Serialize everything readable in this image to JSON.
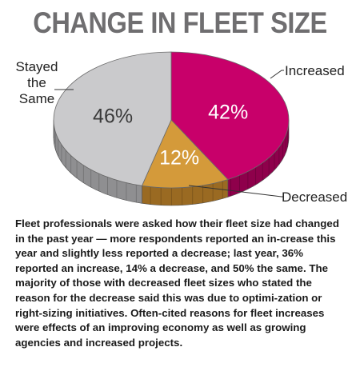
{
  "chart_data": {
    "type": "pie",
    "title": "CHANGE IN FLEET SIZE",
    "categories": [
      "Increased",
      "Decreased",
      "Stayed the Same"
    ],
    "values": [
      42,
      12,
      46
    ],
    "value_labels": [
      "42%",
      "12%",
      "46%"
    ],
    "colors": [
      "#c8006a",
      "#d49a3a",
      "#cacacc"
    ],
    "side_colors": [
      "#8e004b",
      "#9a6a22",
      "#8f8f91"
    ],
    "label_colors": [
      "#ffffff",
      "#ffffff",
      "#3a3a3a"
    ],
    "callouts": [
      [
        "Increased"
      ],
      [
        "Decreased"
      ],
      [
        "Stayed",
        "the",
        "Same"
      ]
    ],
    "style": "3d-tilted"
  },
  "caption": "Fleet professionals were asked how their fleet size had changed in the past year — more respondents reported an in-crease this year and slightly less reported a decrease; last year, 36% reported an increase, 14% a decrease, and 50% the same. The majority of those with decreased fleet sizes who stated the reason for the decrease said this was due to optimi-zation or right-sizing initiatives. Often-cited reasons for fleet increases were effects of an improving economy as well as growing agencies and increased projects."
}
